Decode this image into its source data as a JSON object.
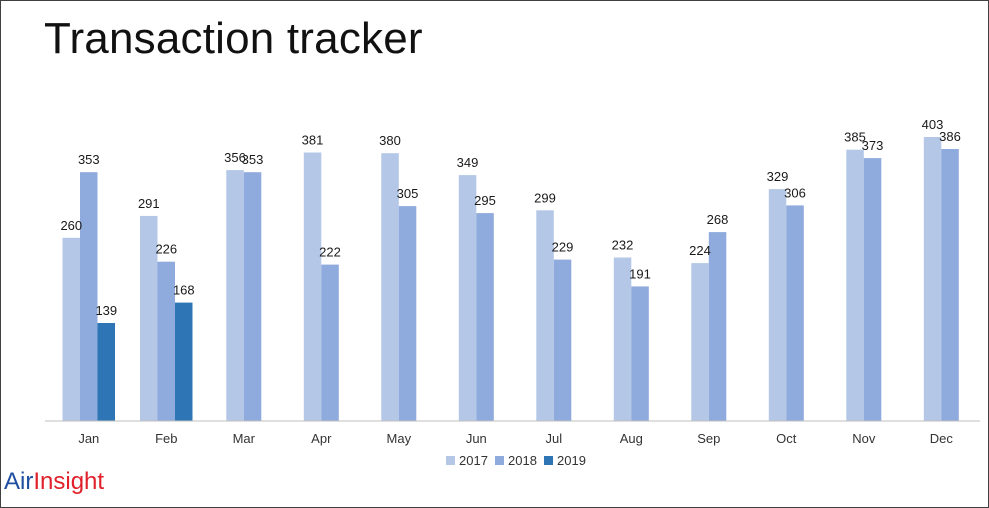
{
  "page": {
    "title": "Transaction tracker",
    "logo": {
      "part1": "Air",
      "part2": "Insight"
    }
  },
  "chart_data": {
    "type": "bar",
    "title": "Transaction tracker",
    "categories": [
      "Jan",
      "Feb",
      "Mar",
      "Apr",
      "May",
      "Jun",
      "Jul",
      "Aug",
      "Sep",
      "Oct",
      "Nov",
      "Dec"
    ],
    "series": [
      {
        "name": "2017",
        "color": "#b4c7e7",
        "values": [
          260,
          291,
          356,
          381,
          380,
          349,
          299,
          232,
          224,
          329,
          385,
          403
        ]
      },
      {
        "name": "2018",
        "color": "#8faadc",
        "values": [
          353,
          226,
          353,
          222,
          305,
          295,
          229,
          191,
          268,
          306,
          373,
          386
        ]
      },
      {
        "name": "2019",
        "color": "#2e75b6",
        "values": [
          139,
          168,
          null,
          null,
          null,
          null,
          null,
          null,
          null,
          null,
          null,
          null
        ]
      }
    ],
    "ylim": [
      0,
      403
    ],
    "xlabel": "",
    "ylabel": "",
    "grid": false,
    "legend": "bottom-center",
    "data_labels": true
  }
}
